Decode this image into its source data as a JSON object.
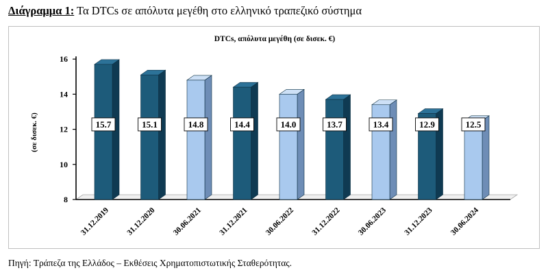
{
  "heading": {
    "label": "Διάγραμμα 1:",
    "text": " Τα DTCs σε απόλυτα μεγέθη στο ελληνικό τραπεζικό σύστημα"
  },
  "source": "Πηγή: Τράπεζα της Ελλάδος – Εκθέσεις Χρηματοπιστωτικής Σταθερότητας.",
  "chart_data": {
    "type": "bar",
    "title": "DTCs, απόλυτα μεγέθη (σε δισεκ. €)",
    "ylabel": "(σε δισεκ. €)",
    "xlabel": "",
    "categories": [
      "31.12.2019",
      "31.12.2020",
      "30.06.2021",
      "31.12.2021",
      "30.06.2022",
      "31.12.2022",
      "30.06.2023",
      "31.12.2023",
      "30.06.2024"
    ],
    "values": [
      15.7,
      15.1,
      14.8,
      14.4,
      14.0,
      13.7,
      13.4,
      12.9,
      12.5
    ],
    "value_labels": [
      "15.7",
      "15.1",
      "14.8",
      "14.4",
      "14.0",
      "13.7",
      "13.4",
      "12.9",
      "12.5"
    ],
    "ylim": [
      8,
      16
    ],
    "yticks": [
      "8",
      "10",
      "12",
      "14",
      "16"
    ],
    "grid": false,
    "legend": "none",
    "bar_style": "3d",
    "colors": {
      "dark": "#1d5b7a",
      "light": "#a9c9ee",
      "axis": "#000000"
    },
    "bar_shade": [
      "dark",
      "dark",
      "light",
      "dark",
      "light",
      "dark",
      "light",
      "dark",
      "light"
    ]
  }
}
